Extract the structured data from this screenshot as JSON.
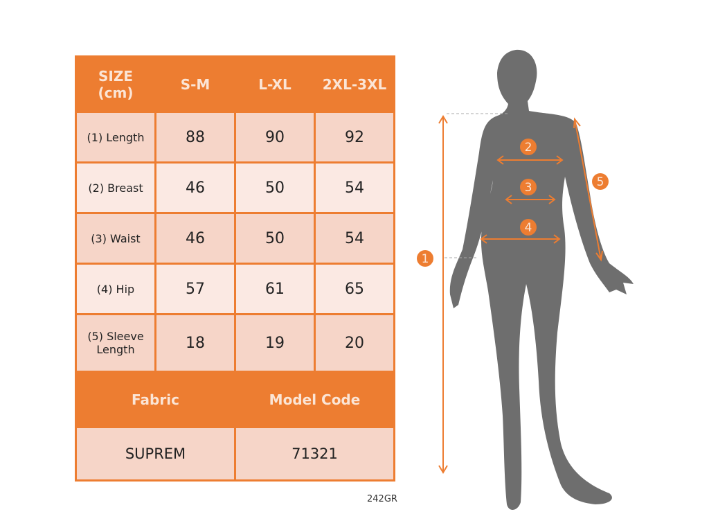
{
  "table": {
    "header": [
      "SIZE\n(cm)",
      "S-M",
      "L-XL",
      "2XL-3XL"
    ],
    "header_size_line1": "SIZE",
    "header_size_line2": "(cm)",
    "rows": [
      {
        "label": "(1) Length",
        "values": [
          "88",
          "90",
          "92"
        ]
      },
      {
        "label": "(2) Breast",
        "values": [
          "46",
          "50",
          "54"
        ]
      },
      {
        "label": "(3) Waist",
        "values": [
          "46",
          "50",
          "54"
        ]
      },
      {
        "label": "(4) Hip",
        "values": [
          "57",
          "61",
          "65"
        ]
      },
      {
        "label_line1": "(5) Sleeve",
        "label_line2": "Length",
        "values": [
          "18",
          "19",
          "20"
        ]
      }
    ],
    "footer_headers": [
      "Fabric",
      "Model Code"
    ],
    "footer_values": [
      "SUPREM",
      "71321"
    ]
  },
  "product_code": "242GR",
  "markers": [
    "1",
    "2",
    "3",
    "4",
    "5"
  ],
  "colors": {
    "accent": "#ed7d31",
    "cell_dark": "#f6d5c8",
    "cell_light": "#fbe9e3",
    "silhouette": "#6e6e6e"
  }
}
